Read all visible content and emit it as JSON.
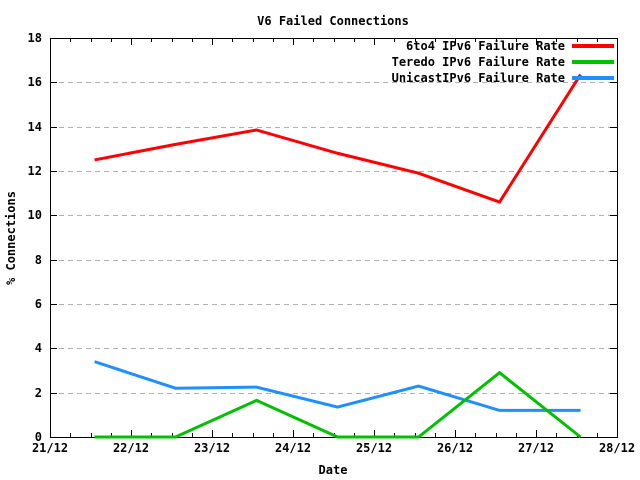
{
  "chart_data": {
    "type": "line",
    "title": "V6 Failed Connections",
    "xlabel": "Date",
    "ylabel": "% Connections",
    "xlim": [
      21,
      28
    ],
    "ylim": [
      0,
      18
    ],
    "ytick_step": 2,
    "xticks": [
      {
        "value": 21,
        "label": "21/12"
      },
      {
        "value": 22,
        "label": "22/12"
      },
      {
        "value": 23,
        "label": "23/12"
      },
      {
        "value": 24,
        "label": "24/12"
      },
      {
        "value": 25,
        "label": "25/12"
      },
      {
        "value": 26,
        "label": "26/12"
      },
      {
        "value": 27,
        "label": "27/12"
      },
      {
        "value": 28,
        "label": "28/12"
      }
    ],
    "x": [
      21.55,
      22.55,
      23.55,
      24.55,
      25.55,
      26.55,
      27.55
    ],
    "series": [
      {
        "name": "6to4 IPv6 Failure Rate",
        "color": "#ff0000",
        "values": [
          12.5,
          13.2,
          13.85,
          12.8,
          11.9,
          10.6,
          16.35
        ]
      },
      {
        "name": "Teredo IPv6 Failure Rate",
        "color": "#00c000",
        "values": [
          0,
          0,
          1.65,
          0,
          0,
          2.9,
          0
        ]
      },
      {
        "name": "UnicastIPv6 Failure Rate",
        "color": "#1e90ff",
        "values": [
          3.4,
          2.2,
          2.25,
          1.35,
          2.3,
          1.2,
          1.2
        ]
      }
    ],
    "draw_order": [
      0,
      2,
      1
    ],
    "grid": "horizontal-dashed",
    "grid_color": "#b0b0b0",
    "legend_position": "top-right-inside"
  }
}
